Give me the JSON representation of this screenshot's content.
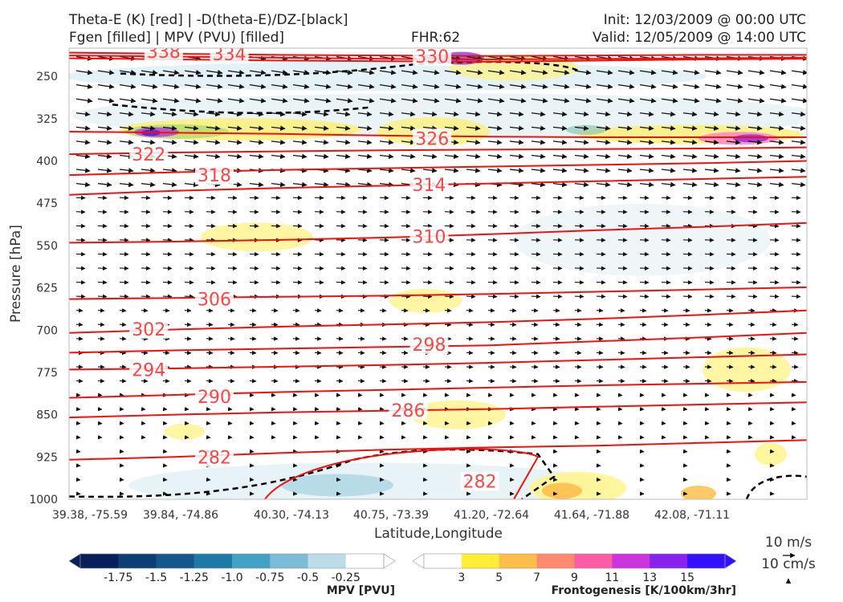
{
  "header": {
    "line1_left": "Theta-E (K) [red] | -D(theta-E)/DZ-[black]",
    "line2_left": "Fgen [filled] | MPV (PVU) [filled]",
    "fhr": "FHR:62",
    "init": "Init: 12/03/2009 @ 00:00 UTC",
    "valid": "Valid: 12/05/2009 @ 14:00 UTC"
  },
  "chart_data": {
    "type": "cross-section",
    "xlabel": "Latitude,Longitude",
    "ylabel": "Pressure [hPa]",
    "ylim": [
      1000,
      200
    ],
    "x_ticks": [
      "39.38, -75.59",
      "39.84, -74.86",
      "40.30, -74.13",
      "40.75, -73.39",
      "41.20, -72.64",
      "41.64, -71.88",
      "42.08, -71.11"
    ],
    "y_ticks": [
      250,
      325,
      400,
      475,
      550,
      625,
      700,
      775,
      850,
      925,
      1000
    ],
    "theta_e_contours": [
      {
        "value": 338,
        "label": "338",
        "p": [
          208,
          210,
          212,
          213,
          214,
          213,
          212,
          212
        ]
      },
      {
        "value": 334,
        "label": "334",
        "p": [
          213,
          215,
          217,
          219,
          220,
          219,
          218,
          217
        ]
      },
      {
        "value": 330,
        "label": "330",
        "p": [
          218,
          220,
          222,
          223,
          224,
          222,
          220,
          219
        ]
      },
      {
        "value": 326,
        "label": "326",
        "p": [
          348,
          350,
          352,
          355,
          357,
          358,
          358,
          358
        ]
      },
      {
        "value": 322,
        "label": "322",
        "p": [
          388,
          385,
          383,
          381,
          380,
          379,
          378,
          376
        ]
      },
      {
        "value": 318,
        "label": "318",
        "p": [
          425,
          420,
          416,
          413,
          410,
          407,
          404,
          400
        ]
      },
      {
        "value": 314,
        "label": "314",
        "p": [
          460,
          453,
          448,
          444,
          440,
          436,
          432,
          428
        ]
      },
      {
        "value": 310,
        "label": "310",
        "p": [
          545,
          543,
          540,
          536,
          530,
          523,
          517,
          510
        ]
      },
      {
        "value": 306,
        "label": "306",
        "p": [
          645,
          643,
          641,
          639,
          636,
          632,
          628,
          624
        ]
      },
      {
        "value": 302,
        "label": "302",
        "p": [
          705,
          699,
          694,
          690,
          686,
          680,
          673,
          665
        ]
      },
      {
        "value": 298,
        "label": "298",
        "p": [
          740,
          736,
          733,
          730,
          727,
          720,
          713,
          705
        ]
      },
      {
        "value": 294,
        "label": "294",
        "p": [
          770,
          768,
          765,
          762,
          758,
          753,
          748,
          743
        ]
      },
      {
        "value": 290,
        "label": "290",
        "p": [
          820,
          815,
          810,
          806,
          802,
          798,
          795,
          792
        ]
      },
      {
        "value": 286,
        "label": "286",
        "p": [
          855,
          850,
          846,
          843,
          840,
          836,
          832,
          828
        ]
      },
      {
        "value": 282,
        "label": "282",
        "p": [
          930,
          925,
          918,
          912,
          908,
          905,
          900,
          895
        ]
      }
    ],
    "theta_e_label_positions": [
      {
        "label": "338",
        "xi": 0.9,
        "p": 206
      },
      {
        "label": "334",
        "xi": 2.0,
        "p": 210
      },
      {
        "label": "330",
        "xi": 5.4,
        "p": 214
      },
      {
        "label": "322",
        "xi": 0.65,
        "p": 388
      },
      {
        "label": "326",
        "xi": 5.4,
        "p": 360
      },
      {
        "label": "318",
        "xi": 1.75,
        "p": 425
      },
      {
        "label": "314",
        "xi": 5.35,
        "p": 442
      },
      {
        "label": "310",
        "xi": 5.35,
        "p": 534
      },
      {
        "label": "306",
        "xi": 1.75,
        "p": 645
      },
      {
        "label": "302",
        "xi": 0.65,
        "p": 698
      },
      {
        "label": "298",
        "xi": 5.35,
        "p": 725
      },
      {
        "label": "294",
        "xi": 0.65,
        "p": 770
      },
      {
        "label": "290",
        "xi": 1.75,
        "p": 818
      },
      {
        "label": "286",
        "xi": 5.0,
        "p": 842
      },
      {
        "label": "282",
        "xi": 1.75,
        "p": 925
      },
      {
        "label": "282",
        "xi": 6.2,
        "p": 968
      }
    ],
    "vector_legend": {
      "horizontal": "10 m/s",
      "vertical": "10 cm/s"
    }
  },
  "colorbars": {
    "mpv": {
      "title": "MPV [PVU]",
      "labels": [
        "-1.75",
        "-1.5",
        "-1.25",
        "-1.0",
        "-0.75",
        "-0.5",
        "-0.25"
      ],
      "colors": [
        "#08205a",
        "#0d3e73",
        "#14578d",
        "#1d7aa6",
        "#44a1c6",
        "#7bbcd6",
        "#bcdde7",
        "#ffffff"
      ]
    },
    "fgen": {
      "title": "Frontogenesis [K/100km/3hr]",
      "labels": [
        "3",
        "5",
        "7",
        "9",
        "11",
        "13",
        "15"
      ],
      "colors": [
        "#ffffff",
        "#ffee33",
        "#ffbe49",
        "#ff8a6e",
        "#ff5ca6",
        "#cc34dd",
        "#8822ee",
        "#3311ff"
      ]
    }
  }
}
